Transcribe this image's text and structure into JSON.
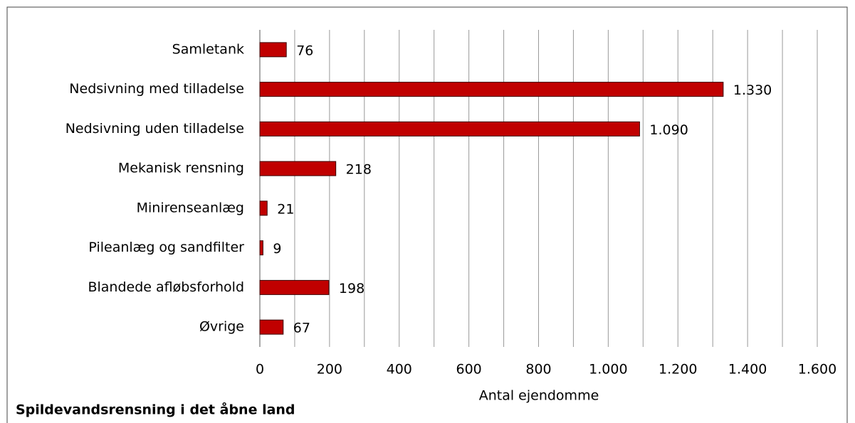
{
  "chart_data": {
    "type": "bar",
    "orientation": "horizontal",
    "title": "Spildevandsrensning i det åbne land",
    "x_label": "Antal ejendomme",
    "categories": [
      "Samletank",
      "Nedsivning med tilladelse",
      "Nedsivning uden tilladelse",
      "Mekanisk rensning",
      "Minirenseanlæg",
      "Pileanlæg og sandfilter",
      "Blandede afløbsforhold",
      "Øvrige"
    ],
    "values": [
      76,
      1330,
      1090,
      218,
      21,
      9,
      198,
      67
    ],
    "value_labels": [
      "76",
      "1.330",
      "1.090",
      "218",
      "21",
      "9",
      "198",
      "67"
    ],
    "color": "#c00000",
    "xlim": [
      0,
      1600
    ],
    "xticks": [
      0,
      200,
      400,
      600,
      800,
      {
        "value": 1000,
        "label": "1.000"
      },
      {
        "value": 1200,
        "label": "1.200"
      },
      {
        "value": 1400,
        "label": "1.400"
      },
      {
        "value": 1600,
        "label": "1.600"
      }
    ],
    "xgrid": [
      0,
      100,
      200,
      300,
      400,
      500,
      600,
      700,
      800,
      900,
      1000,
      1100,
      1200,
      1300,
      1400,
      1500,
      1600
    ],
    "grid": true
  }
}
